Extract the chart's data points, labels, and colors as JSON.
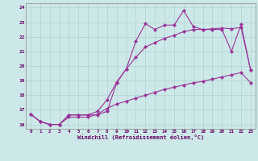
{
  "xlabel": "Windchill (Refroidissement éolien,°C)",
  "bg_color": "#cde8e8",
  "grid_color": "#aacccc",
  "line_color": "#993399",
  "xlim": [
    -0.5,
    23.5
  ],
  "ylim": [
    15.7,
    24.3
  ],
  "xticks": [
    0,
    1,
    2,
    3,
    4,
    5,
    6,
    7,
    8,
    9,
    10,
    11,
    12,
    13,
    14,
    15,
    16,
    17,
    18,
    19,
    20,
    21,
    22,
    23
  ],
  "yticks": [
    16,
    17,
    18,
    19,
    20,
    21,
    22,
    23,
    24
  ],
  "line1_y": [
    16.7,
    16.2,
    16.0,
    16.0,
    16.65,
    16.65,
    16.65,
    16.65,
    16.9,
    18.85,
    19.8,
    21.7,
    22.9,
    22.5,
    22.8,
    22.8,
    23.8,
    22.7,
    22.5,
    22.5,
    22.5,
    21.0,
    22.85,
    19.7
  ],
  "line2_y": [
    16.7,
    16.2,
    16.0,
    16.0,
    16.65,
    16.65,
    16.65,
    16.9,
    17.7,
    18.9,
    19.8,
    20.6,
    21.3,
    21.6,
    21.9,
    22.1,
    22.35,
    22.5,
    22.5,
    22.55,
    22.6,
    22.55,
    22.65,
    19.7
  ],
  "line3_y": [
    16.7,
    16.2,
    16.0,
    16.0,
    16.5,
    16.5,
    16.5,
    16.7,
    17.1,
    17.4,
    17.6,
    17.8,
    18.0,
    18.2,
    18.4,
    18.55,
    18.7,
    18.85,
    18.95,
    19.1,
    19.25,
    19.4,
    19.55,
    18.85
  ]
}
